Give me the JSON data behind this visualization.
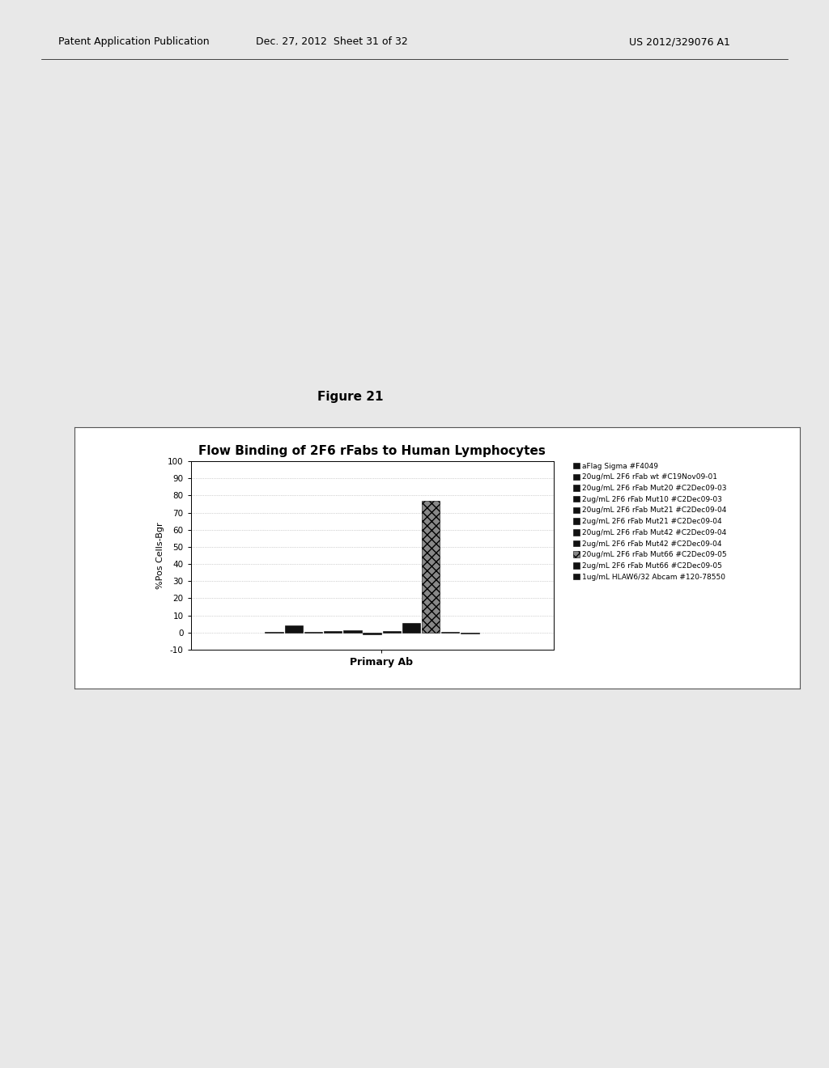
{
  "title": "Flow Binding of 2F6 rFabs to Human Lymphocytes",
  "xlabel": "Primary Ab",
  "ylabel": "%Pos Cells-Bgr",
  "ylim": [
    -10,
    100
  ],
  "yticks": [
    -10,
    0,
    10,
    20,
    30,
    40,
    50,
    60,
    70,
    80,
    90,
    100
  ],
  "series": [
    {
      "label": "aFlag Sigma #F4049",
      "value": 0.5,
      "color": "#111111",
      "hatch": null
    },
    {
      "label": "20ug/mL 2F6 rFab wt #C19Nov09-01",
      "value": 4.0,
      "color": "#111111",
      "hatch": null
    },
    {
      "label": "20ug/mL 2F6 rFab Mut20 #C2Dec09-03",
      "value": 0.3,
      "color": "#111111",
      "hatch": null
    },
    {
      "label": "2ug/mL 2F6 rFab Mut10 #C2Dec09-03",
      "value": 1.0,
      "color": "#111111",
      "hatch": null
    },
    {
      "label": "20ug/mL 2F6 rFab Mut21 #C2Dec09-04",
      "value": 1.5,
      "color": "#111111",
      "hatch": null
    },
    {
      "label": "2ug/mL 2F6 rFab Mut21 #C2Dec09-04",
      "value": -1.0,
      "color": "#111111",
      "hatch": null
    },
    {
      "label": "20ug/mL 2F6 rFab Mut42 #C2Dec09-04",
      "value": 1.0,
      "color": "#111111",
      "hatch": null
    },
    {
      "label": "2ug/mL 2F6 rFab Mut42 #C2Dec09-04",
      "value": 5.5,
      "color": "#111111",
      "hatch": null
    },
    {
      "label": "20ug/mL 2F6 rFab Mut66 #C2Dec09-05",
      "value": 77.0,
      "color": "#888888",
      "hatch": "xxx"
    },
    {
      "label": "2ug/mL 2F6 rFab Mut66 #C2Dec09-05",
      "value": 0.5,
      "color": "#111111",
      "hatch": null
    },
    {
      "label": "1ug/mL HLAW6/32 Abcam #120-78550",
      "value": -0.5,
      "color": "#111111",
      "hatch": null
    }
  ],
  "figure_bg": "#e8e8e8",
  "chart_area_bg": "#ffffff",
  "chart_bg": "#ffffff",
  "border_color": "#000000",
  "grid_color": "#aaaaaa",
  "title_fontsize": 11,
  "axis_label_fontsize": 8,
  "tick_fontsize": 7.5,
  "legend_fontsize": 6.5,
  "header_left": "Patent Application Publication",
  "header_center": "Dec. 27, 2012  Sheet 31 of 32",
  "header_right": "US 2012/329076 A1",
  "figure_label": "Figure 21",
  "figure_label_fontsize": 11
}
